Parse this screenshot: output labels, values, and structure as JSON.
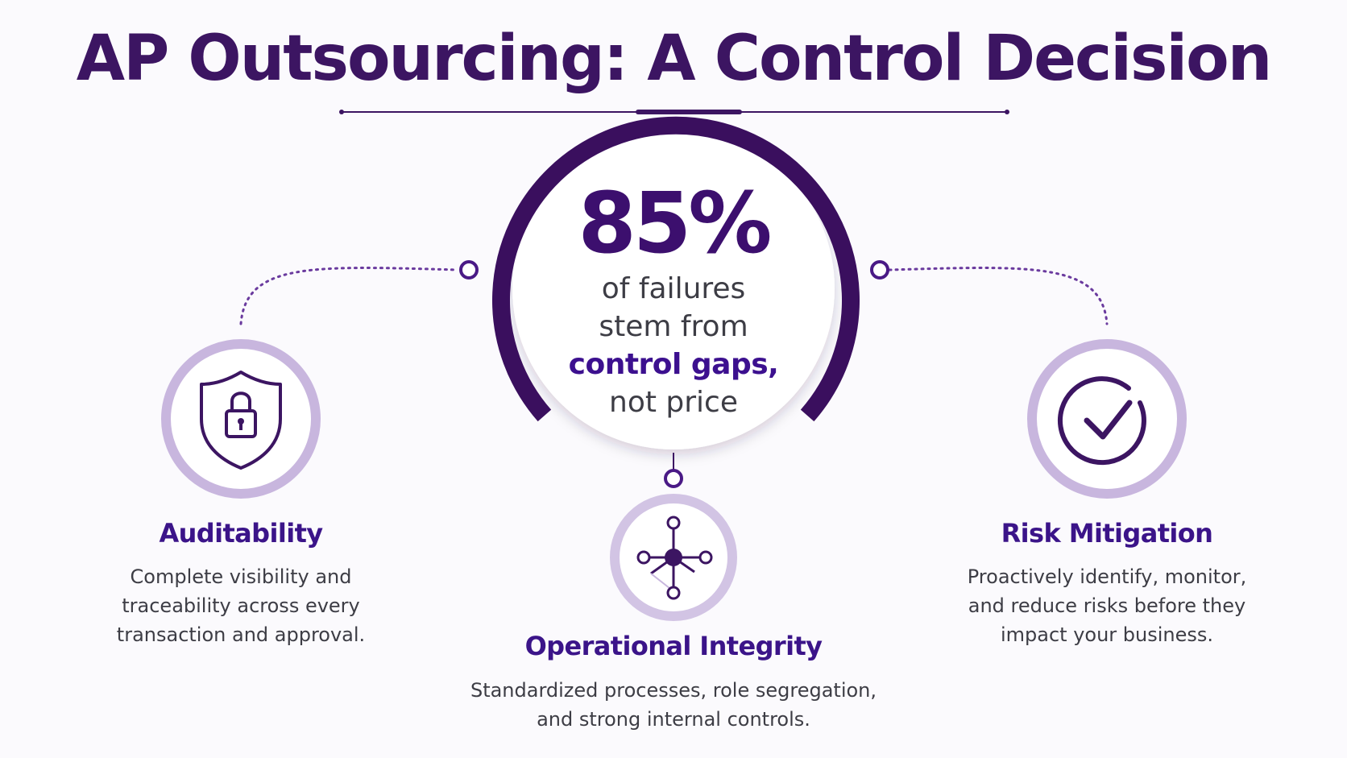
{
  "title": "AP Outsourcing: A Control Decision",
  "stat": {
    "value": "85%",
    "lines": [
      "of failures",
      "stem from",
      "control gaps,",
      "not price"
    ],
    "accent_line_index": 2
  },
  "pillars": [
    {
      "title": "Auditability",
      "icon": "shield-lock-icon",
      "description": [
        "Complete visibility and",
        "traceability across every",
        "transaction and approval."
      ]
    },
    {
      "title": "Operational Integrity",
      "icon": "network-node-icon",
      "description": [
        "Standardized processes, role segregation,",
        "and strong internal controls."
      ]
    },
    {
      "title": "Risk Mitigation",
      "icon": "check-circle-icon",
      "description": [
        "Proactively identify, monitor,",
        "and reduce risks before they",
        "impact your business."
      ]
    }
  ],
  "colors": {
    "primary": "#3c1562",
    "accent": "#3c108f",
    "ring_light": "#c9b8de",
    "text": "#3d3d45"
  }
}
